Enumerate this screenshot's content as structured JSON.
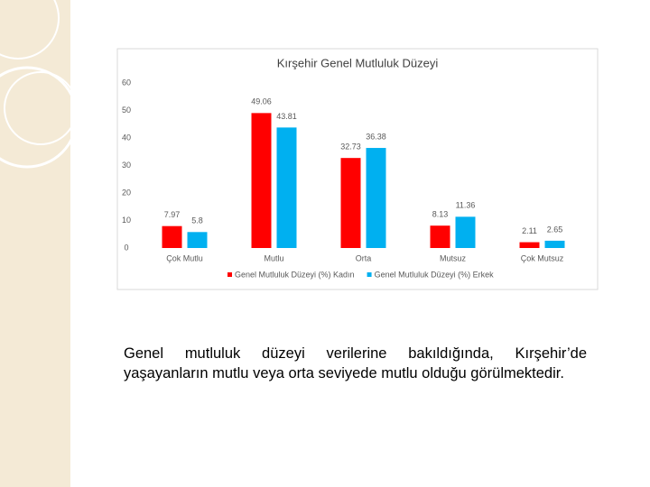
{
  "chart_data": {
    "type": "bar",
    "title": "Kırşehir Genel Mutluluk Düzeyi",
    "categories": [
      "Çok Mutlu",
      "Mutlu",
      "Orta",
      "Mutsuz",
      "Çok Mutsuz"
    ],
    "series": [
      {
        "name": "Genel Mutluluk Düzeyi (%) Kadın",
        "color": "#ff0000",
        "values": [
          7.97,
          49.06,
          32.73,
          8.13,
          2.11
        ]
      },
      {
        "name": "Genel Mutluluk Düzeyi (%) Erkek",
        "color": "#00b0f0",
        "values": [
          5.8,
          43.81,
          36.38,
          11.36,
          2.65
        ]
      }
    ],
    "ylim": [
      0,
      60
    ],
    "yticks": [
      0,
      10,
      20,
      30,
      40,
      50,
      60
    ],
    "grid": false,
    "legend": "bottom"
  },
  "body_text": "Genel mutluluk düzeyi verilerine bakıldığında, Kırşehir’de yaşayanların mutlu veya orta seviyede mutlu olduğu görülmektedir."
}
